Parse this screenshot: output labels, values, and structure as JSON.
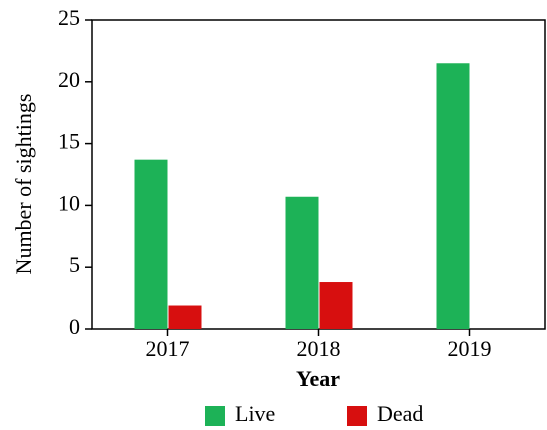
{
  "chart_data": {
    "type": "bar",
    "x_label": "Year",
    "y_label": "Number of sightings",
    "categories": [
      "2017",
      "2018",
      "2019"
    ],
    "series": [
      {
        "name": "Live",
        "color": "#1db257",
        "values": [
          13.7,
          10.7,
          21.5
        ]
      },
      {
        "name": "Dead",
        "color": "#d70f0f",
        "values": [
          1.9,
          3.8,
          0
        ]
      }
    ],
    "ylim": [
      0,
      25
    ],
    "yticks": [
      0,
      5,
      10,
      15,
      20,
      25
    ],
    "legend": "bottom"
  }
}
